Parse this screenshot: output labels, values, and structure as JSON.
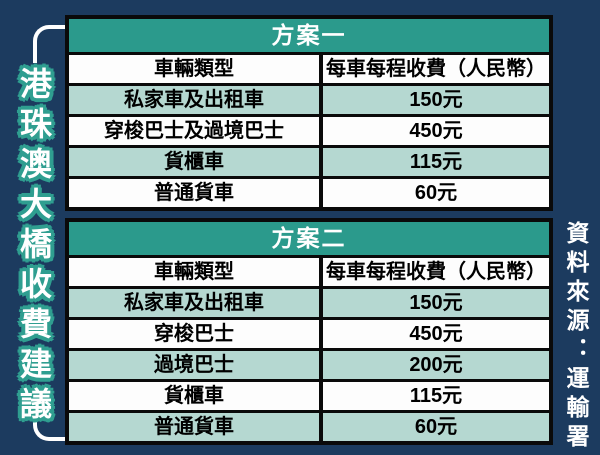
{
  "title": {
    "text": "港珠澳大橋收費建議"
  },
  "source": {
    "text": "資料來源：運輸署"
  },
  "colors": {
    "background": "#1C3B5F",
    "table_header_teal": "#2B9A8C",
    "row_light_teal": "#B5D8D1",
    "row_white": "#FDFDFD",
    "border_black": "#0A0A0A",
    "title_outline_teal": "#2F9E90",
    "text_white": "#FFFFFF"
  },
  "chart_data": [
    {
      "type": "table",
      "title": "方案一",
      "columns": [
        "車輛類型",
        "每車每程收費（人民幣）"
      ],
      "rows": [
        [
          "私家車及出租車",
          "150元"
        ],
        [
          "穿梭巴士及過境巴士",
          "450元"
        ],
        [
          "貨櫃車",
          "115元"
        ],
        [
          "普通貨車",
          "60元"
        ]
      ]
    },
    {
      "type": "table",
      "title": "方案二",
      "columns": [
        "車輛類型",
        "每車每程收費（人民幣）"
      ],
      "rows": [
        [
          "私家車及出租車",
          "150元"
        ],
        [
          "穿梭巴士",
          "450元"
        ],
        [
          "過境巴士",
          "200元"
        ],
        [
          "貨櫃車",
          "115元"
        ],
        [
          "普通貨車",
          "60元"
        ]
      ]
    }
  ]
}
